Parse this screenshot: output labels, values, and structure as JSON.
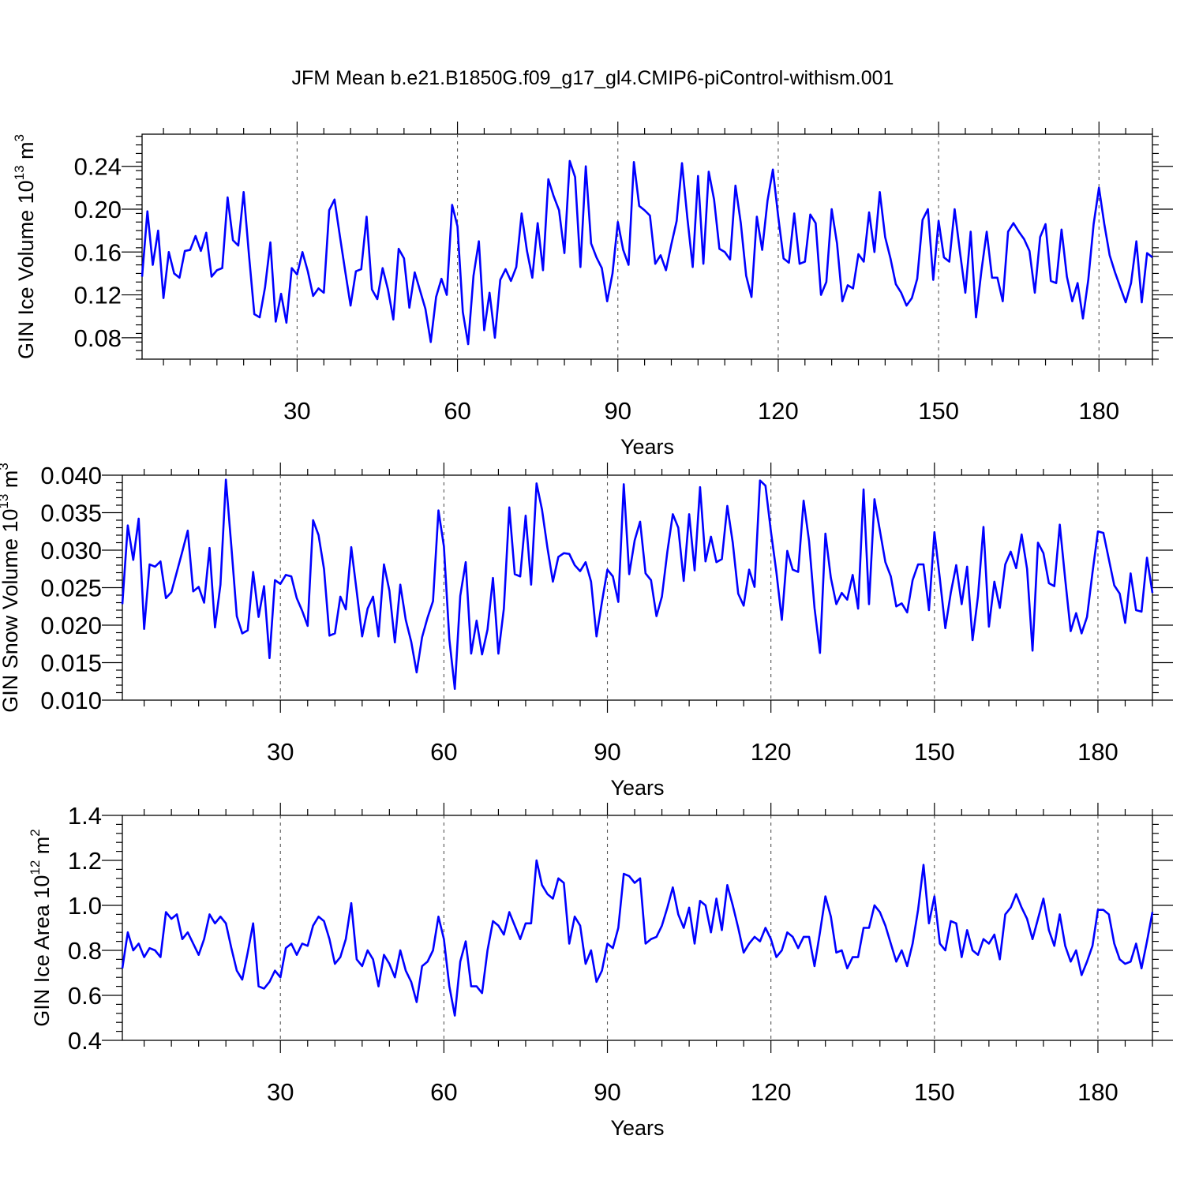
{
  "title": "JFM Mean b.e21.B1850G.f09_g17_gl4.CMIP6-piControl-withism.001",
  "colors": {
    "line": "#0000ff",
    "axis": "#000000",
    "grid": "#555555"
  },
  "chart_data": [
    {
      "type": "line",
      "xlabel": "Years",
      "ylabel": {
        "text": "GIN Ice Volume 10",
        "sup": "13",
        "unit": " m",
        "unit_sup": "3"
      },
      "xlim": [
        1,
        190
      ],
      "ylim": [
        0.06,
        0.27
      ],
      "xticks": [
        30,
        60,
        90,
        120,
        150,
        180
      ],
      "yticks": [
        0.08,
        0.12,
        0.16,
        0.2,
        0.24
      ],
      "yticklabels": [
        "0.08",
        "0.12",
        "0.16",
        "0.20",
        "0.24"
      ],
      "grid": "vertical dashed at major x ticks",
      "x_start": 1,
      "values": [
        0.137,
        0.198,
        0.148,
        0.18,
        0.117,
        0.16,
        0.14,
        0.136,
        0.161,
        0.162,
        0.175,
        0.161,
        0.178,
        0.137,
        0.143,
        0.145,
        0.211,
        0.171,
        0.166,
        0.216,
        0.157,
        0.102,
        0.099,
        0.127,
        0.169,
        0.095,
        0.121,
        0.094,
        0.145,
        0.139,
        0.16,
        0.142,
        0.119,
        0.126,
        0.122,
        0.199,
        0.209,
        0.175,
        0.142,
        0.11,
        0.142,
        0.144,
        0.193,
        0.125,
        0.116,
        0.145,
        0.125,
        0.097,
        0.163,
        0.154,
        0.108,
        0.141,
        0.124,
        0.107,
        0.076,
        0.118,
        0.135,
        0.12,
        0.204,
        0.184,
        0.104,
        0.074,
        0.138,
        0.17,
        0.087,
        0.122,
        0.08,
        0.134,
        0.144,
        0.133,
        0.146,
        0.196,
        0.161,
        0.136,
        0.187,
        0.143,
        0.228,
        0.212,
        0.199,
        0.159,
        0.245,
        0.23,
        0.146,
        0.24,
        0.168,
        0.155,
        0.145,
        0.114,
        0.14,
        0.188,
        0.162,
        0.148,
        0.244,
        0.203,
        0.199,
        0.194,
        0.149,
        0.157,
        0.143,
        0.167,
        0.189,
        0.243,
        0.192,
        0.146,
        0.231,
        0.149,
        0.235,
        0.209,
        0.163,
        0.16,
        0.153,
        0.222,
        0.187,
        0.138,
        0.118,
        0.193,
        0.162,
        0.208,
        0.237,
        0.193,
        0.154,
        0.15,
        0.196,
        0.149,
        0.151,
        0.195,
        0.187,
        0.12,
        0.132,
        0.2,
        0.168,
        0.114,
        0.129,
        0.126,
        0.158,
        0.151,
        0.197,
        0.16,
        0.216,
        0.174,
        0.154,
        0.13,
        0.122,
        0.11,
        0.117,
        0.135,
        0.19,
        0.2,
        0.134,
        0.189,
        0.155,
        0.151,
        0.2,
        0.16,
        0.122,
        0.179,
        0.099,
        0.142,
        0.179,
        0.136,
        0.136,
        0.114,
        0.179,
        0.187,
        0.179,
        0.172,
        0.161,
        0.122,
        0.174,
        0.186,
        0.133,
        0.131,
        0.181,
        0.137,
        0.114,
        0.131,
        0.098,
        0.134,
        0.186,
        0.22,
        0.186,
        0.157,
        0.141,
        0.127,
        0.113,
        0.131,
        0.17,
        0.113,
        0.159,
        0.155
      ]
    },
    {
      "type": "line",
      "xlabel": "Years",
      "ylabel": {
        "text": "GIN Snow Volume 10",
        "sup": "13",
        "unit": " m",
        "unit_sup": "3"
      },
      "xlim": [
        1,
        190
      ],
      "ylim": [
        0.01,
        0.04
      ],
      "xticks": [
        30,
        60,
        90,
        120,
        150,
        180
      ],
      "yticks": [
        0.01,
        0.015,
        0.02,
        0.025,
        0.03,
        0.035,
        0.04
      ],
      "yticklabels": [
        "0.010",
        "0.015",
        "0.020",
        "0.025",
        "0.030",
        "0.035",
        "0.040"
      ],
      "grid": "vertical dashed at major x ticks",
      "x_start": 1,
      "values": [
        0.0228,
        0.0333,
        0.0287,
        0.0342,
        0.0195,
        0.0281,
        0.0278,
        0.0285,
        0.0236,
        0.0244,
        0.0271,
        0.0298,
        0.0326,
        0.0245,
        0.0251,
        0.023,
        0.0303,
        0.0197,
        0.0254,
        0.0394,
        0.0305,
        0.0212,
        0.0189,
        0.0193,
        0.0271,
        0.0211,
        0.0252,
        0.0156,
        0.026,
        0.0255,
        0.0267,
        0.0265,
        0.0236,
        0.0219,
        0.0199,
        0.034,
        0.032,
        0.0275,
        0.0186,
        0.0189,
        0.0238,
        0.0221,
        0.0304,
        0.0245,
        0.0185,
        0.0222,
        0.0238,
        0.0185,
        0.0281,
        0.0246,
        0.0177,
        0.0254,
        0.0207,
        0.0178,
        0.0137,
        0.0184,
        0.021,
        0.0232,
        0.0353,
        0.0305,
        0.0181,
        0.0115,
        0.0239,
        0.0284,
        0.0162,
        0.0206,
        0.0161,
        0.0194,
        0.0263,
        0.0162,
        0.0222,
        0.0357,
        0.0268,
        0.0265,
        0.0346,
        0.0254,
        0.0389,
        0.0354,
        0.0303,
        0.0258,
        0.0291,
        0.0296,
        0.0295,
        0.028,
        0.0272,
        0.0284,
        0.0258,
        0.0185,
        0.0231,
        0.0274,
        0.0265,
        0.0231,
        0.0388,
        0.0268,
        0.0313,
        0.0338,
        0.0269,
        0.026,
        0.0212,
        0.0238,
        0.0298,
        0.0348,
        0.033,
        0.0259,
        0.0348,
        0.0273,
        0.0384,
        0.0285,
        0.0318,
        0.0284,
        0.0288,
        0.0359,
        0.031,
        0.0242,
        0.0226,
        0.0274,
        0.0251,
        0.0393,
        0.0386,
        0.0325,
        0.0271,
        0.0207,
        0.0299,
        0.0274,
        0.0271,
        0.0366,
        0.0312,
        0.0223,
        0.0163,
        0.0322,
        0.0263,
        0.0228,
        0.0243,
        0.0234,
        0.0267,
        0.0222,
        0.0381,
        0.0228,
        0.0368,
        0.0326,
        0.0284,
        0.0265,
        0.0225,
        0.0229,
        0.0217,
        0.026,
        0.0281,
        0.0281,
        0.022,
        0.0324,
        0.0262,
        0.0196,
        0.0243,
        0.028,
        0.0228,
        0.0278,
        0.018,
        0.0239,
        0.0331,
        0.0198,
        0.0258,
        0.0223,
        0.0281,
        0.0298,
        0.0276,
        0.0321,
        0.0275,
        0.0166,
        0.031,
        0.0296,
        0.0256,
        0.0252,
        0.0334,
        0.0261,
        0.0192,
        0.0216,
        0.0189,
        0.0211,
        0.027,
        0.0325,
        0.0323,
        0.0288,
        0.0253,
        0.0242,
        0.0203,
        0.0269,
        0.022,
        0.0218,
        0.029,
        0.0243
      ]
    },
    {
      "type": "line",
      "xlabel": "Years",
      "ylabel": {
        "text": "GIN Ice Area 10",
        "sup": "12",
        "unit": " m",
        "unit_sup": "2"
      },
      "xlim": [
        1,
        190
      ],
      "ylim": [
        0.4,
        1.4
      ],
      "xticks": [
        30,
        60,
        90,
        120,
        150,
        180
      ],
      "yticks": [
        0.4,
        0.6,
        0.8,
        1.0,
        1.2,
        1.4
      ],
      "yticklabels": [
        "0.4",
        "0.6",
        "0.8",
        "1.0",
        "1.2",
        "1.4"
      ],
      "grid": "vertical dashed at major x ticks",
      "x_start": 1,
      "values": [
        0.72,
        0.88,
        0.8,
        0.83,
        0.77,
        0.81,
        0.8,
        0.77,
        0.97,
        0.94,
        0.96,
        0.85,
        0.88,
        0.83,
        0.78,
        0.85,
        0.96,
        0.92,
        0.95,
        0.92,
        0.81,
        0.71,
        0.67,
        0.79,
        0.92,
        0.64,
        0.63,
        0.66,
        0.71,
        0.68,
        0.81,
        0.83,
        0.78,
        0.83,
        0.82,
        0.91,
        0.95,
        0.93,
        0.85,
        0.74,
        0.77,
        0.85,
        1.01,
        0.76,
        0.73,
        0.8,
        0.76,
        0.64,
        0.78,
        0.74,
        0.68,
        0.8,
        0.71,
        0.66,
        0.57,
        0.73,
        0.75,
        0.8,
        0.95,
        0.85,
        0.64,
        0.51,
        0.75,
        0.84,
        0.64,
        0.64,
        0.61,
        0.8,
        0.93,
        0.91,
        0.87,
        0.97,
        0.91,
        0.85,
        0.92,
        0.92,
        1.2,
        1.09,
        1.05,
        1.03,
        1.12,
        1.1,
        0.83,
        0.95,
        0.91,
        0.74,
        0.8,
        0.66,
        0.71,
        0.83,
        0.81,
        0.9,
        1.14,
        1.13,
        1.1,
        1.12,
        0.83,
        0.85,
        0.86,
        0.91,
        0.99,
        1.08,
        0.96,
        0.9,
        0.99,
        0.83,
        1.02,
        1.0,
        0.88,
        1.03,
        0.89,
        1.09,
        1.0,
        0.9,
        0.79,
        0.83,
        0.86,
        0.84,
        0.9,
        0.85,
        0.77,
        0.8,
        0.88,
        0.86,
        0.81,
        0.86,
        0.86,
        0.73,
        0.88,
        1.04,
        0.95,
        0.79,
        0.8,
        0.72,
        0.77,
        0.77,
        0.9,
        0.9,
        1.0,
        0.97,
        0.91,
        0.83,
        0.75,
        0.8,
        0.73,
        0.83,
        0.98,
        1.18,
        0.92,
        1.04,
        0.83,
        0.8,
        0.93,
        0.92,
        0.77,
        0.89,
        0.8,
        0.78,
        0.85,
        0.83,
        0.87,
        0.76,
        0.96,
        0.99,
        1.05,
        0.99,
        0.94,
        0.85,
        0.94,
        1.03,
        0.89,
        0.82,
        0.96,
        0.82,
        0.75,
        0.8,
        0.69,
        0.75,
        0.82,
        0.98,
        0.98,
        0.96,
        0.83,
        0.76,
        0.74,
        0.75,
        0.83,
        0.72,
        0.84,
        0.97
      ]
    }
  ]
}
